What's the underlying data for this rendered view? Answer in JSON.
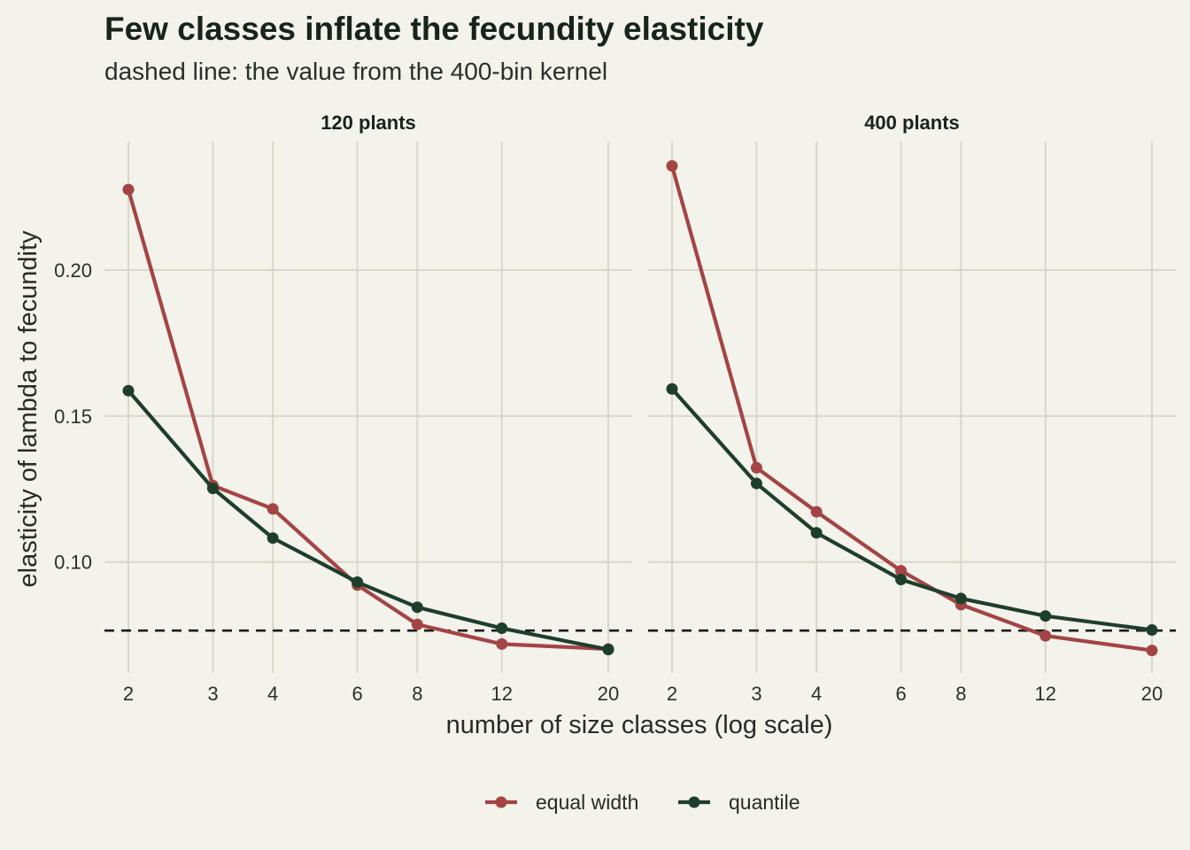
{
  "title": "Few classes inflate the fecundity elasticity",
  "subtitle": "dashed line: the value from the 400-bin kernel",
  "chart_data": {
    "type": "line",
    "x_scale": "log",
    "xlabel": "number of size classes (log scale)",
    "ylabel": "elasticity of lambda to fecundity",
    "x_ticks": [
      2,
      3,
      4,
      6,
      8,
      12,
      20
    ],
    "y_ticks": [
      0.1,
      0.15,
      0.2
    ],
    "y_tick_labels": [
      "0.10",
      "0.15",
      "0.20"
    ],
    "ylim": [
      0.062,
      0.244
    ],
    "reference_line": {
      "y": 0.0765,
      "style": "dashed"
    },
    "legend": {
      "position": "bottom"
    },
    "grid": true,
    "colors": {
      "equal_width": "#a44444",
      "quantile": "#1e3e2c"
    },
    "panels": [
      {
        "label": "120 plants",
        "x": [
          2,
          3,
          4,
          6,
          8,
          12,
          20
        ],
        "series": [
          {
            "name": "equal width",
            "color": "#a44444",
            "values": [
              0.2276,
              0.1262,
              0.1182,
              0.0921,
              0.0786,
              0.0719,
              0.0702
            ]
          },
          {
            "name": "quantile",
            "color": "#1e3e2c",
            "values": [
              0.1587,
              0.1252,
              0.1082,
              0.0931,
              0.0845,
              0.0773,
              0.07
            ]
          }
        ]
      },
      {
        "label": "400 plants",
        "x": [
          2,
          3,
          4,
          6,
          8,
          12,
          20
        ],
        "series": [
          {
            "name": "equal width",
            "color": "#a44444",
            "values": [
              0.2357,
              0.1323,
              0.1172,
              0.097,
              0.0854,
              0.0747,
              0.0697
            ]
          },
          {
            "name": "quantile",
            "color": "#1e3e2c",
            "values": [
              0.1593,
              0.1269,
              0.11,
              0.094,
              0.0875,
              0.0815,
              0.0767
            ]
          }
        ]
      }
    ]
  }
}
